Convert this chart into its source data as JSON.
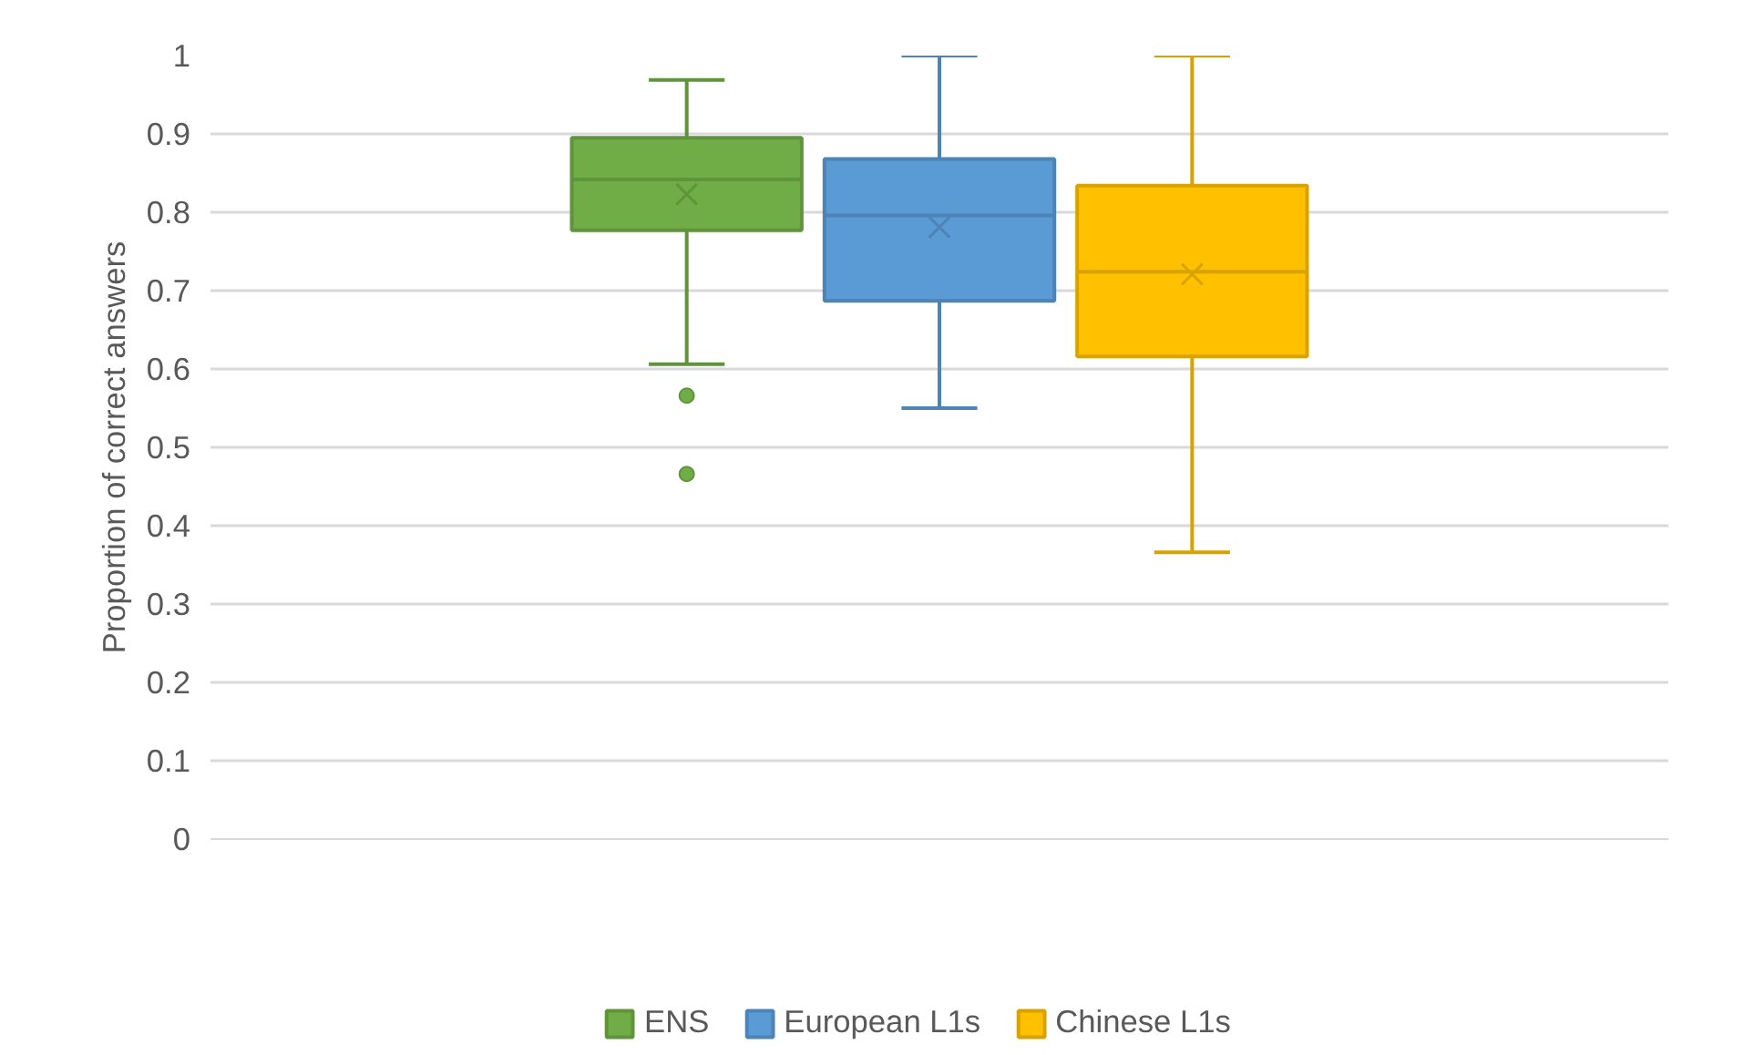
{
  "chart_data": {
    "type": "box",
    "ylabel": "Proportion of correct answers",
    "categories": [
      null
    ],
    "ylim": [
      0,
      1
    ],
    "yticks": [
      0,
      0.1,
      0.2,
      0.3,
      0.4,
      0.5,
      0.6,
      0.7,
      0.8,
      0.9,
      1
    ],
    "grid": "y",
    "legend": "bottom",
    "series": [
      {
        "name": "ENS",
        "color": "#70ad47",
        "boxes": [
          {
            "low": 0.606,
            "q1": 0.777,
            "median": 0.842,
            "q3": 0.895,
            "high": 0.969,
            "mean": 0.823,
            "outliers": [
              0.566,
              0.466
            ]
          }
        ]
      },
      {
        "name": "European L1s",
        "color": "#5b9bd5",
        "boxes": [
          {
            "low": 0.55,
            "q1": 0.687,
            "median": 0.796,
            "q3": 0.868,
            "high": 1.0,
            "mean": 0.781
          }
        ]
      },
      {
        "name": "Chinese L1s",
        "color": "#ffc000",
        "boxes": [
          {
            "low": 0.366,
            "q1": 0.616,
            "median": 0.724,
            "q3": 0.834,
            "high": 1.0,
            "mean": 0.721
          }
        ]
      }
    ]
  }
}
